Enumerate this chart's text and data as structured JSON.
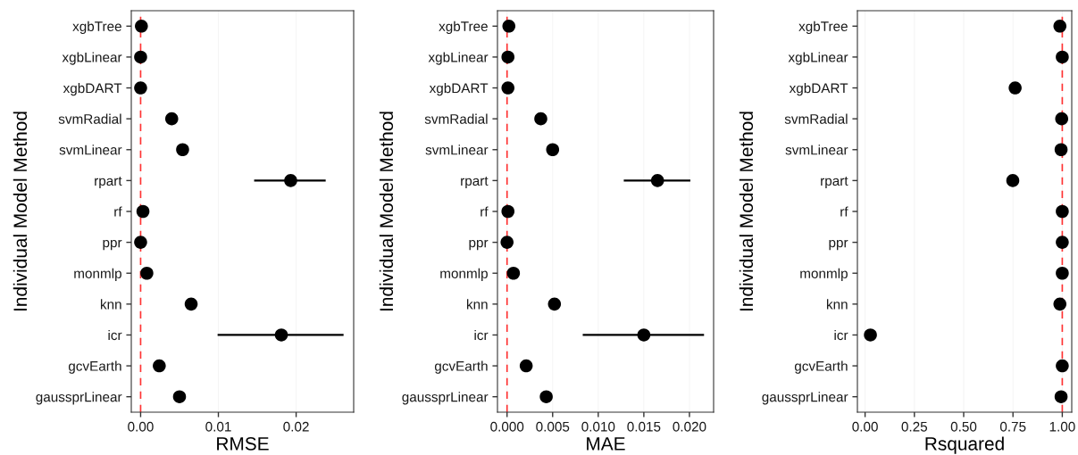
{
  "chart_data": [
    {
      "type": "scatter",
      "orientation": "horizontal",
      "xlabel": "RMSE",
      "ylabel": "Individual Model Method",
      "categories": [
        "xgbTree",
        "xgbLinear",
        "xgbDART",
        "svmRadial",
        "svmLinear",
        "rpart",
        "rf",
        "ppr",
        "monmlp",
        "knn",
        "icr",
        "gcvEarth",
        "gaussprLinear"
      ],
      "series": [
        {
          "color": "#000000",
          "values": [
            0.0001,
            0.0,
            0.0,
            0.004,
            0.0054,
            0.0193,
            0.0003,
            0.0,
            0.0008,
            0.0065,
            0.0181,
            0.0024,
            0.005
          ],
          "errors": [
            null,
            null,
            null,
            null,
            null,
            [
              0.0146,
              0.0238
            ],
            null,
            null,
            null,
            null,
            [
              0.0099,
              0.0261
            ],
            null,
            null
          ]
        }
      ],
      "xlim": [
        -0.0012,
        0.0274
      ],
      "xticks": [
        {
          "value": 0,
          "label": "0.00"
        },
        0.01,
        0.02
      ],
      "marker": "circle",
      "grid": "x",
      "ref_lines": [
        {
          "axis": "x",
          "value": 0,
          "color": "#ff3333",
          "line_style": "dashed"
        }
      ]
    },
    {
      "type": "scatter",
      "orientation": "horizontal",
      "xlabel": "MAE",
      "ylabel": "Individual Model Method",
      "categories": [
        "xgbTree",
        "xgbLinear",
        "xgbDART",
        "svmRadial",
        "svmLinear",
        "rpart",
        "rf",
        "ppr",
        "monmlp",
        "knn",
        "icr",
        "gcvEarth",
        "gaussprLinear"
      ],
      "series": [
        {
          "color": "#000000",
          "values": [
            0.0002,
            0.0001,
            0.0001,
            0.0037,
            0.005,
            0.0165,
            0.0001,
            0.0,
            0.0007,
            0.0052,
            0.015,
            0.0021,
            0.0043
          ],
          "errors": [
            null,
            null,
            null,
            null,
            null,
            [
              0.0128,
              0.0201
            ],
            null,
            null,
            null,
            null,
            [
              0.0083,
              0.0216
            ],
            null,
            null
          ]
        }
      ],
      "xlim": [
        -0.00105,
        0.02265
      ],
      "xticks": [
        {
          "value": 0,
          "label": "0.000"
        },
        0.005,
        {
          "value": 0.01,
          "label": "0.010"
        },
        0.015,
        {
          "value": 0.02,
          "label": "0.020"
        }
      ],
      "marker": "circle",
      "grid": "x",
      "ref_lines": [
        {
          "axis": "x",
          "value": 0,
          "color": "#ff3333",
          "line_style": "dashed"
        }
      ]
    },
    {
      "type": "scatter",
      "orientation": "horizontal",
      "xlabel": "Rsquared",
      "ylabel": "Individual Model Method",
      "categories": [
        "xgbTree",
        "xgbLinear",
        "xgbDART",
        "svmRadial",
        "svmLinear",
        "rpart",
        "rf",
        "ppr",
        "monmlp",
        "knn",
        "icr",
        "gcvEarth",
        "gaussprLinear"
      ],
      "series": [
        {
          "color": "#000000",
          "values": [
            0.988,
            1.0,
            0.761,
            0.997,
            0.994,
            0.749,
            1.0,
            1.0,
            1.0,
            0.988,
            0.027,
            1.0,
            0.994
          ]
        }
      ],
      "xlim": [
        -0.039,
        1.048
      ],
      "xticks": [
        {
          "value": 0,
          "label": "0.00"
        },
        0.25,
        {
          "value": 0.5,
          "label": "0.50"
        },
        0.75,
        {
          "value": 1,
          "label": "1.00"
        }
      ],
      "marker": "circle",
      "grid": "x",
      "ref_lines": [
        {
          "axis": "x",
          "value": 1,
          "color": "#ff3333",
          "line_style": "dashed"
        }
      ]
    }
  ]
}
